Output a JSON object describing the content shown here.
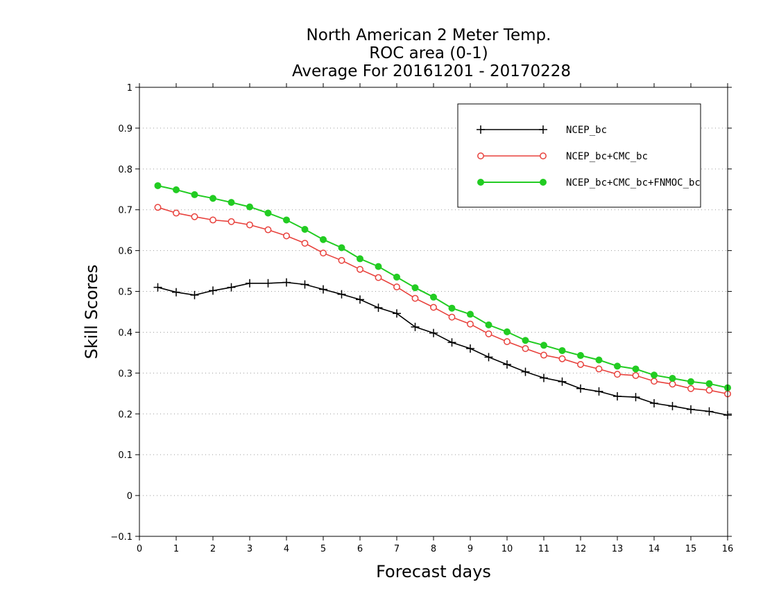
{
  "chart_data": {
    "type": "line",
    "title_lines": [
      "North American 2 Meter Temp.",
      "ROC area (0-1)",
      "Average For 20161201 - 20170228"
    ],
    "xlabel": "Forecast days",
    "ylabel": "Skill Scores",
    "xlim": [
      0,
      16
    ],
    "ylim": [
      -0.1,
      1
    ],
    "xticks": [
      "0",
      "1",
      "2",
      "3",
      "4",
      "5",
      "6",
      "7",
      "8",
      "9",
      "10",
      "11",
      "12",
      "13",
      "14",
      "15",
      "16"
    ],
    "yticks": [
      "−0.1",
      "0",
      "0.1",
      "0.2",
      "0.3",
      "0.4",
      "0.5",
      "0.6",
      "0.7",
      "0.8",
      "0.9",
      "1"
    ],
    "ytick_values": [
      -0.1,
      0,
      0.1,
      0.2,
      0.3,
      0.4,
      0.5,
      0.6,
      0.7,
      0.8,
      0.9,
      1
    ],
    "grid": "horizontal dotted",
    "legend_position": "top-right",
    "x": [
      0.5,
      1,
      1.5,
      2,
      2.5,
      3,
      3.5,
      4,
      4.5,
      5,
      5.5,
      6,
      6.5,
      7,
      7.5,
      8,
      8.5,
      9,
      9.5,
      10,
      10.5,
      11,
      11.5,
      12,
      12.5,
      13,
      13.5,
      14,
      14.5,
      15,
      15.5,
      16
    ],
    "series": [
      {
        "name": "NCEP_bc",
        "color": "#000000",
        "marker": "plus",
        "values": [
          0.51,
          0.498,
          0.491,
          0.502,
          0.51,
          0.52,
          0.52,
          0.522,
          0.517,
          0.505,
          0.493,
          0.48,
          0.46,
          0.446,
          0.413,
          0.398,
          0.375,
          0.36,
          0.339,
          0.321,
          0.303,
          0.288,
          0.279,
          0.262,
          0.255,
          0.243,
          0.241,
          0.226,
          0.219,
          0.211,
          0.206,
          0.197
        ]
      },
      {
        "name": "NCEP_bc+CMC_bc",
        "color": "#e8413c",
        "marker": "open-circle",
        "values": [
          0.706,
          0.692,
          0.683,
          0.675,
          0.671,
          0.663,
          0.651,
          0.636,
          0.618,
          0.594,
          0.576,
          0.554,
          0.534,
          0.511,
          0.483,
          0.461,
          0.437,
          0.42,
          0.396,
          0.377,
          0.36,
          0.344,
          0.335,
          0.321,
          0.31,
          0.297,
          0.294,
          0.28,
          0.273,
          0.262,
          0.258,
          0.249
        ]
      },
      {
        "name": "NCEP_bc+CMC_bc+FNMOC_bc",
        "color": "#22cc22",
        "marker": "filled-circle",
        "values": [
          0.759,
          0.749,
          0.737,
          0.728,
          0.718,
          0.707,
          0.692,
          0.675,
          0.652,
          0.627,
          0.607,
          0.58,
          0.561,
          0.535,
          0.509,
          0.486,
          0.459,
          0.444,
          0.418,
          0.401,
          0.38,
          0.368,
          0.355,
          0.343,
          0.332,
          0.317,
          0.31,
          0.295,
          0.287,
          0.279,
          0.274,
          0.264
        ]
      }
    ]
  }
}
